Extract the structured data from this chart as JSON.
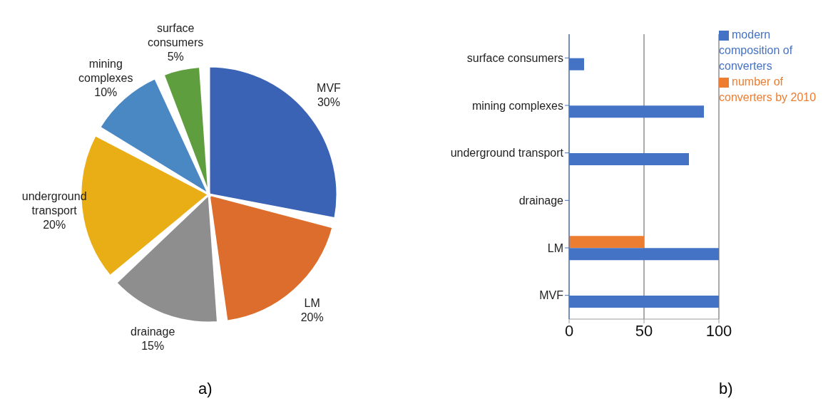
{
  "chart_data": [
    {
      "type": "pie",
      "categories": [
        "MVF",
        "LM",
        "drainage",
        "underground transport",
        "mining complexes",
        "surface consumers"
      ],
      "values": [
        30,
        20,
        15,
        20,
        10,
        5
      ],
      "value_labels": [
        "30%",
        "20%",
        "15%",
        "20%",
        "10%",
        "5%"
      ],
      "colors": [
        "#3a62b5",
        "#dd6d2c",
        "#8e8e8e",
        "#e9ad15",
        "#4a88c3",
        "#5f9e3f"
      ],
      "annotations": [
        "a)"
      ],
      "legend": false
    },
    {
      "type": "bar",
      "orientation": "horizontal",
      "categories": [
        "surface consumers",
        "mining complexes",
        "underground transport",
        "drainage",
        "LM",
        "MVF"
      ],
      "series": [
        {
          "name": "number of converters by 2010",
          "color": "#ed7d31",
          "values": [
            0,
            0,
            0,
            0,
            50,
            0
          ]
        },
        {
          "name": "modern composition of converters",
          "color": "#4472c4",
          "values": [
            10,
            90,
            80,
            0,
            100,
            100
          ]
        }
      ],
      "xlim": [
        0,
        100
      ],
      "xticks": [
        0,
        50,
        100
      ],
      "grid": "x",
      "legend": "right",
      "annotations": [
        "b)"
      ]
    }
  ]
}
